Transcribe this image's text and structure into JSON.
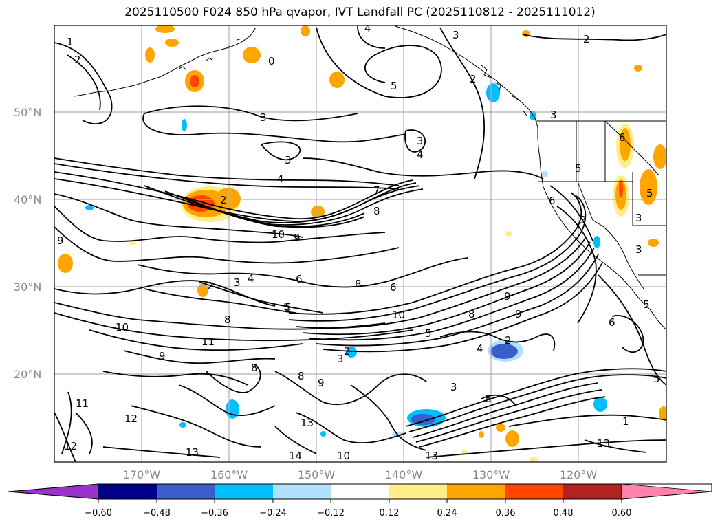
{
  "title": "2025110500 F024 850 hPa qvapor, IVT Landfall PC (2025110812 - 2025111012)",
  "lat_labels": [
    "50°N",
    "40°N",
    "30°N",
    "20°N"
  ],
  "lon_labels": [
    "170°W",
    "160°W",
    "150°W",
    "140°W",
    "130°W",
    "120°W"
  ],
  "colorbar": {
    "colors": [
      "#9a32cd",
      "#00008b",
      "#3a5fcd",
      "#00bfff",
      "#b0e2ff",
      "#ffffff",
      "#ffec8b",
      "#ffa500",
      "#ff4500",
      "#b22222",
      "#ff82ab"
    ],
    "tick_labels": [
      "−0.60",
      "−0.48",
      "−0.36",
      "−0.24",
      "−0.12",
      "0.12",
      "0.24",
      "0.36",
      "0.48",
      "0.60"
    ]
  },
  "contour_labels": [
    "1",
    "2",
    "4",
    "3",
    "2",
    "0",
    "5",
    "2",
    "3",
    "3",
    "4",
    "3",
    "3",
    "4",
    "2",
    "7",
    "8",
    "5",
    "6",
    "10",
    "9",
    "9",
    "2",
    "3",
    "4",
    "6",
    "8",
    "6",
    "9",
    "5",
    "10",
    "10",
    "8",
    "5",
    "9",
    "8",
    "2",
    "4",
    "11",
    "2",
    "9",
    "8",
    "8",
    "9",
    "3",
    "3",
    "5",
    "12",
    "11",
    "12",
    "13",
    "13",
    "14",
    "10",
    "13",
    "3",
    "6",
    "6",
    "5",
    "8",
    "3",
    "3",
    "5",
    "5",
    "13",
    "1"
  ],
  "legend_icons": [
    "colorbar-extend-low-icon",
    "colorbar-extend-high-icon"
  ]
}
